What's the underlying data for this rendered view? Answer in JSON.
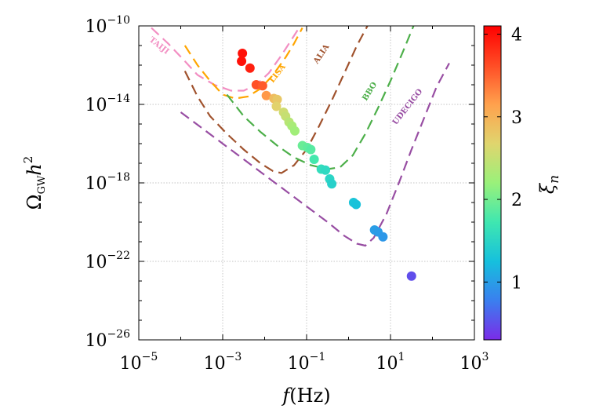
{
  "chart_data": {
    "type": "scatter",
    "title": "",
    "xlabel": {
      "italic": "f",
      "rest": "(Hz)"
    },
    "ylabel": {
      "base": "Ω",
      "sub": "GW",
      "mid": "h",
      "sup": "2"
    },
    "xscale": "log",
    "yscale": "log",
    "x_log_range": [
      -5,
      3
    ],
    "y_log_range": [
      -26,
      -10
    ],
    "x_ticks": [
      {
        "log": -5,
        "base": "10",
        "exp": "−5"
      },
      {
        "log": -3,
        "base": "10",
        "exp": "−3"
      },
      {
        "log": -1,
        "base": "10",
        "exp": "−1"
      },
      {
        "log": 1,
        "base": "10",
        "exp": "1"
      },
      {
        "log": 3,
        "base": "10",
        "exp": "3"
      }
    ],
    "y_ticks": [
      {
        "log": -10,
        "base": "10",
        "exp": "−10"
      },
      {
        "log": -14,
        "base": "10",
        "exp": "−14"
      },
      {
        "log": -18,
        "base": "10",
        "exp": "−18"
      },
      {
        "log": -22,
        "base": "10",
        "exp": "−22"
      },
      {
        "log": -26,
        "base": "10",
        "exp": "−26"
      }
    ],
    "grid": true,
    "colorbar": {
      "label": "ξn",
      "label_base": "ξ",
      "label_sub": "n",
      "min": 0.3,
      "max": 4.1,
      "ticks": [
        "1",
        "2",
        "3",
        "4"
      ],
      "tick_values": [
        1,
        2,
        3,
        4
      ],
      "colors": [
        "#7b2be8",
        "#3a7fef",
        "#16c0dd",
        "#3fe7b0",
        "#9af17a",
        "#e0d56e",
        "#ffa14d",
        "#ff4c25",
        "#ff0000"
      ]
    },
    "curves": [
      {
        "name": "TAIJI",
        "color": "#f28ec2",
        "points": [
          [
            -4.7,
            -10.1
          ],
          [
            -4.3,
            -10.9
          ],
          [
            -3.9,
            -11.8
          ],
          [
            -3.6,
            -12.5
          ],
          [
            -3.2,
            -13.0
          ],
          [
            -2.8,
            -13.3
          ],
          [
            -2.5,
            -13.3
          ],
          [
            -2.2,
            -13.0
          ],
          [
            -1.9,
            -12.4
          ],
          [
            -1.6,
            -11.5
          ],
          [
            -1.3,
            -10.5
          ],
          [
            -1.15,
            -10.0
          ]
        ]
      },
      {
        "name": "LISA",
        "color": "#ffa500",
        "points": [
          [
            -3.9,
            -11.0
          ],
          [
            -3.6,
            -12.0
          ],
          [
            -3.3,
            -12.8
          ],
          [
            -3.0,
            -13.5
          ],
          [
            -2.7,
            -13.7
          ],
          [
            -2.4,
            -13.6
          ],
          [
            -2.1,
            -13.2
          ],
          [
            -1.8,
            -12.5
          ],
          [
            -1.5,
            -11.6
          ],
          [
            -1.3,
            -10.9
          ],
          [
            -1.1,
            -10.1
          ]
        ]
      },
      {
        "name": "ALIA",
        "color": "#a0522d",
        "points": [
          [
            -3.9,
            -12.3
          ],
          [
            -3.6,
            -13.6
          ],
          [
            -3.3,
            -14.6
          ],
          [
            -2.9,
            -15.5
          ],
          [
            -2.5,
            -16.3
          ],
          [
            -2.1,
            -17.0
          ],
          [
            -1.8,
            -17.4
          ],
          [
            -1.6,
            -17.5
          ],
          [
            -1.3,
            -17.1
          ],
          [
            -1.0,
            -16.3
          ],
          [
            -0.7,
            -15.1
          ],
          [
            -0.4,
            -13.8
          ],
          [
            -0.1,
            -12.4
          ],
          [
            0.2,
            -11.0
          ],
          [
            0.45,
            -10.0
          ]
        ]
      },
      {
        "name": "BBO",
        "color": "#4daf4a",
        "points": [
          [
            -2.9,
            -13.5
          ],
          [
            -2.5,
            -14.6
          ],
          [
            -2.1,
            -15.4
          ],
          [
            -1.7,
            -16.1
          ],
          [
            -1.3,
            -16.7
          ],
          [
            -0.9,
            -17.1
          ],
          [
            -0.5,
            -17.3
          ],
          [
            -0.2,
            -17.2
          ],
          [
            0.1,
            -16.6
          ],
          [
            0.4,
            -15.5
          ],
          [
            0.7,
            -14.2
          ],
          [
            1.0,
            -12.8
          ],
          [
            1.3,
            -11.3
          ],
          [
            1.55,
            -10.0
          ]
        ]
      },
      {
        "name": "UDECIGO",
        "color": "#984ea3",
        "points": [
          [
            -4.0,
            -14.4
          ],
          [
            -3.5,
            -15.2
          ],
          [
            -3.0,
            -16.0
          ],
          [
            -2.5,
            -16.8
          ],
          [
            -2.0,
            -17.6
          ],
          [
            -1.5,
            -18.4
          ],
          [
            -1.0,
            -19.2
          ],
          [
            -0.5,
            -20.0
          ],
          [
            -0.1,
            -20.7
          ],
          [
            0.2,
            -21.1
          ],
          [
            0.4,
            -21.2
          ],
          [
            0.6,
            -20.8
          ],
          [
            0.9,
            -19.6
          ],
          [
            1.2,
            -18.0
          ],
          [
            1.5,
            -16.3
          ],
          [
            1.8,
            -14.7
          ],
          [
            2.1,
            -13.1
          ],
          [
            2.4,
            -11.9
          ]
        ]
      }
    ],
    "curve_labels": [
      {
        "text": "TAIJI",
        "color": "#f28ec2",
        "at": [
          -4.55,
          -11.1
        ],
        "rotate": 38
      },
      {
        "text": "LISA",
        "color": "#ffa500",
        "at": [
          -1.65,
          -12.5
        ],
        "rotate": -52
      },
      {
        "text": "ALIA",
        "color": "#a0522d",
        "at": [
          -0.6,
          -11.5
        ],
        "rotate": -56
      },
      {
        "text": "BBO",
        "color": "#4daf4a",
        "at": [
          0.55,
          -13.4
        ],
        "rotate": -58
      },
      {
        "text": "UDECIGO",
        "color": "#984ea3",
        "at": [
          1.45,
          -14.2
        ],
        "rotate": -52
      }
    ],
    "points": [
      {
        "x": -2.53,
        "y": -11.4,
        "c": 4.0
      },
      {
        "x": -2.55,
        "y": -11.8,
        "c": 4.0
      },
      {
        "x": -2.35,
        "y": -12.15,
        "c": 3.9
      },
      {
        "x": -2.2,
        "y": -13.0,
        "c": 3.6
      },
      {
        "x": -2.05,
        "y": -13.05,
        "c": 3.55
      },
      {
        "x": -1.96,
        "y": -13.55,
        "c": 3.2
      },
      {
        "x": -1.78,
        "y": -13.7,
        "c": 2.9
      },
      {
        "x": -1.7,
        "y": -13.75,
        "c": 2.8
      },
      {
        "x": -1.72,
        "y": -14.1,
        "c": 2.7
      },
      {
        "x": -1.55,
        "y": -14.4,
        "c": 2.55
      },
      {
        "x": -1.5,
        "y": -14.6,
        "c": 2.5
      },
      {
        "x": -1.42,
        "y": -14.9,
        "c": 2.4
      },
      {
        "x": -1.35,
        "y": -15.1,
        "c": 2.3
      },
      {
        "x": -1.28,
        "y": -15.35,
        "c": 2.25
      },
      {
        "x": -1.1,
        "y": -16.1,
        "c": 1.95
      },
      {
        "x": -0.98,
        "y": -16.2,
        "c": 1.9
      },
      {
        "x": -0.9,
        "y": -16.3,
        "c": 1.85
      },
      {
        "x": -0.82,
        "y": -16.8,
        "c": 1.75
      },
      {
        "x": -0.65,
        "y": -17.3,
        "c": 1.6
      },
      {
        "x": -0.55,
        "y": -17.35,
        "c": 1.55
      },
      {
        "x": -0.45,
        "y": -17.8,
        "c": 1.5
      },
      {
        "x": -0.4,
        "y": -18.05,
        "c": 1.45
      },
      {
        "x": 0.12,
        "y": -19.0,
        "c": 1.3
      },
      {
        "x": 0.18,
        "y": -19.1,
        "c": 1.28
      },
      {
        "x": 0.62,
        "y": -20.4,
        "c": 1.0
      },
      {
        "x": 0.7,
        "y": -20.5,
        "c": 0.98
      },
      {
        "x": 0.82,
        "y": -20.75,
        "c": 0.95
      },
      {
        "x": 1.5,
        "y": -22.75,
        "c": 0.5
      }
    ]
  }
}
